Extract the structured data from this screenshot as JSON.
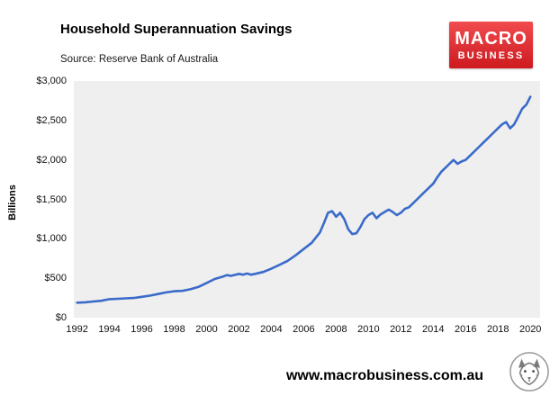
{
  "header": {
    "title": "Household Superannuation Savings",
    "source": "Source: Reserve Bank of Australia",
    "logo": {
      "line1": "MACRO",
      "line2": "BUSINESS",
      "bg_top": "#f14b4e",
      "bg_bottom": "#cd1a1f"
    }
  },
  "footer": {
    "website": "www.macrobusiness.com.au"
  },
  "chart_data": {
    "type": "line",
    "title": "Household Superannuation Savings",
    "subtitle": "Source: Reserve Bank of Australia",
    "xlabel": "",
    "ylabel": "Billions",
    "xlim": [
      1991.8,
      2020.6
    ],
    "ylim": [
      0,
      3000
    ],
    "grid": false,
    "legend": "none",
    "plot_bg": "#efefef",
    "line_color": "#3a6bc9",
    "x_ticks": {
      "values": [
        1992,
        1994,
        1996,
        1998,
        2000,
        2002,
        2004,
        2006,
        2008,
        2010,
        2012,
        2014,
        2016,
        2018,
        2020
      ],
      "labels": [
        "1992",
        "1994",
        "1996",
        "1998",
        "2000",
        "2002",
        "2004",
        "2006",
        "2008",
        "2010",
        "2012",
        "2014",
        "2016",
        "2018",
        "2020"
      ]
    },
    "y_ticks": {
      "values": [
        0,
        500,
        1000,
        1500,
        2000,
        2500,
        3000
      ],
      "labels": [
        "$0",
        "$500",
        "$1,000",
        "$1,500",
        "$2,000",
        "$2,500",
        "$3,000"
      ]
    },
    "series": [
      {
        "name": "Household superannuation savings ($ billions)",
        "x": [
          1992,
          1992.5,
          1993,
          1993.5,
          1994,
          1994.5,
          1995,
          1995.5,
          1996,
          1996.5,
          1997,
          1997.5,
          1998,
          1998.5,
          1999,
          1999.5,
          2000,
          2000.5,
          2001,
          2001.25,
          2001.5,
          2002,
          2002.25,
          2002.5,
          2002.75,
          2003,
          2003.5,
          2004,
          2004.5,
          2005,
          2005.5,
          2006,
          2006.5,
          2007,
          2007.25,
          2007.5,
          2007.75,
          2008,
          2008.25,
          2008.5,
          2008.75,
          2009,
          2009.25,
          2009.5,
          2009.75,
          2010,
          2010.25,
          2010.5,
          2010.75,
          2011,
          2011.25,
          2011.5,
          2011.75,
          2012,
          2012.25,
          2012.5,
          2012.75,
          2013,
          2013.25,
          2013.5,
          2013.75,
          2014,
          2014.25,
          2014.5,
          2014.75,
          2015,
          2015.25,
          2015.5,
          2015.75,
          2016,
          2016.25,
          2016.5,
          2016.75,
          2017,
          2017.25,
          2017.5,
          2017.75,
          2018,
          2018.25,
          2018.5,
          2018.75,
          2019,
          2019.25,
          2019.5,
          2019.75,
          2020
        ],
        "y": [
          190,
          195,
          205,
          215,
          235,
          240,
          245,
          250,
          265,
          280,
          300,
          320,
          335,
          340,
          360,
          390,
          440,
          490,
          520,
          540,
          530,
          555,
          545,
          560,
          545,
          555,
          580,
          620,
          670,
          720,
          790,
          870,
          950,
          1080,
          1200,
          1330,
          1350,
          1280,
          1330,
          1250,
          1120,
          1060,
          1070,
          1150,
          1250,
          1300,
          1330,
          1260,
          1310,
          1340,
          1370,
          1340,
          1300,
          1330,
          1380,
          1400,
          1450,
          1500,
          1550,
          1600,
          1650,
          1700,
          1780,
          1850,
          1900,
          1950,
          2000,
          1950,
          1980,
          2000,
          2050,
          2100,
          2150,
          2200,
          2250,
          2300,
          2350,
          2400,
          2450,
          2480,
          2400,
          2450,
          2550,
          2650,
          2700,
          2800
        ]
      }
    ]
  }
}
